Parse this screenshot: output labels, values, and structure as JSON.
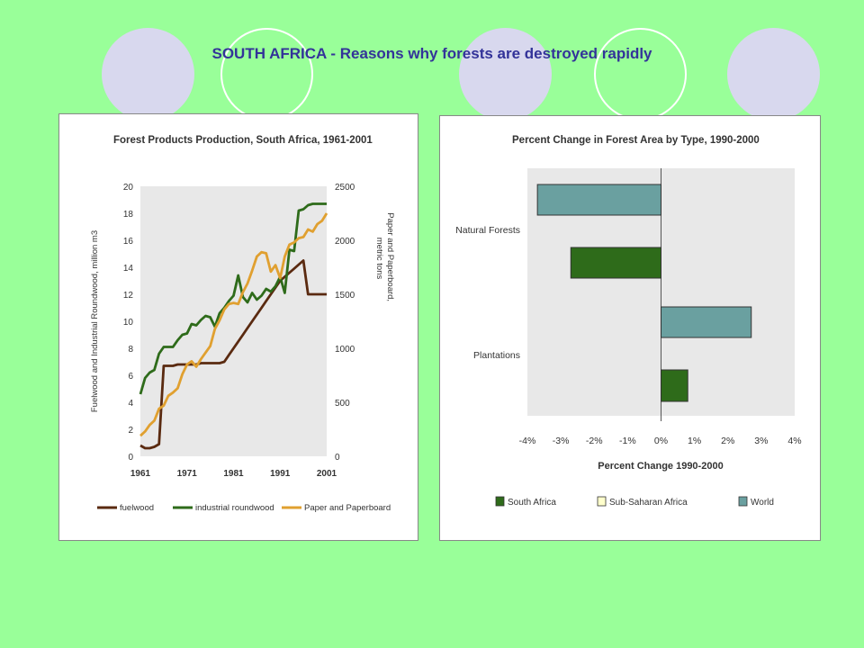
{
  "slide": {
    "title": "SOUTH AFRICA  -  Reasons why forests are destroyed rapidly"
  },
  "colors": {
    "background": "#99ff99",
    "circle_fill": "#d8d8ee",
    "circle_ring": "#ffffff",
    "title_text": "#333399",
    "fuelwood": "#5a2a10",
    "industrial_roundwood": "#2e6b1a",
    "paper": "#e0a030",
    "south_africa": "#2e6b1a",
    "sub_saharan_africa": "#ffffcc",
    "world": "#6aa0a0",
    "plot_bg": "#e8e8e8"
  },
  "chart_data": [
    {
      "type": "line",
      "title": "Forest Products Production, South Africa, 1961-2001",
      "ylabel": "Fuelwood and Industrial Roundwood, million m3",
      "y2label": "Paper and Paperboard, metric tons",
      "xlim": [
        1961,
        2001
      ],
      "ylim": [
        0,
        20
      ],
      "y2lim": [
        0,
        2500
      ],
      "xticks": [
        "1961",
        "1971",
        "1981",
        "1991",
        "2001"
      ],
      "yticks": [
        "0",
        "2",
        "4",
        "6",
        "8",
        "10",
        "12",
        "14",
        "16",
        "18",
        "20"
      ],
      "y2ticks": [
        "0",
        "500",
        "1000",
        "1500",
        "2000",
        "2500"
      ],
      "legend_position": "bottom",
      "series": [
        {
          "name": "fuelwood",
          "axis": "left",
          "x": [
            1961,
            1962,
            1963,
            1964,
            1965,
            1966,
            1967,
            1968,
            1969,
            1970,
            1971,
            1972,
            1973,
            1974,
            1975,
            1976,
            1977,
            1978,
            1979,
            1980,
            1981,
            1982,
            1983,
            1984,
            1985,
            1986,
            1987,
            1988,
            1989,
            1990,
            1991,
            1992,
            1993,
            1994,
            1995,
            1996,
            1997,
            1998,
            1999,
            2000,
            2001
          ],
          "values": [
            0.8,
            0.6,
            0.6,
            0.7,
            0.9,
            6.7,
            6.7,
            6.7,
            6.8,
            6.8,
            6.8,
            6.8,
            6.8,
            6.9,
            6.9,
            6.9,
            6.9,
            6.9,
            7.0,
            7.5,
            8.0,
            8.5,
            9.0,
            9.5,
            10.0,
            10.5,
            11.0,
            11.5,
            12.0,
            12.5,
            13.0,
            13.3,
            13.6,
            13.9,
            14.2,
            14.5,
            12.0,
            12.0,
            12.0,
            12.0,
            12.0
          ]
        },
        {
          "name": "industrial roundwood",
          "axis": "left",
          "x": [
            1961,
            1962,
            1963,
            1964,
            1965,
            1966,
            1967,
            1968,
            1969,
            1970,
            1971,
            1972,
            1973,
            1974,
            1975,
            1976,
            1977,
            1978,
            1979,
            1980,
            1981,
            1982,
            1983,
            1984,
            1985,
            1986,
            1987,
            1988,
            1989,
            1990,
            1991,
            1992,
            1993,
            1994,
            1995,
            1996,
            1997,
            1998,
            1999,
            2000,
            2001
          ],
          "values": [
            4.6,
            5.8,
            6.2,
            6.4,
            7.6,
            8.1,
            8.1,
            8.1,
            8.6,
            9.0,
            9.1,
            9.8,
            9.7,
            10.1,
            10.4,
            10.3,
            9.6,
            10.6,
            11.0,
            11.5,
            11.9,
            13.4,
            11.8,
            11.4,
            12.1,
            11.6,
            11.9,
            12.4,
            12.2,
            12.6,
            13.3,
            12.1,
            15.3,
            15.2,
            18.2,
            18.3,
            18.6,
            18.7,
            18.7,
            18.7,
            18.7
          ]
        },
        {
          "name": "Paper and Paperboard",
          "axis": "right",
          "x": [
            1961,
            1962,
            1963,
            1964,
            1965,
            1966,
            1967,
            1968,
            1969,
            1970,
            1971,
            1972,
            1973,
            1974,
            1975,
            1976,
            1977,
            1978,
            1979,
            1980,
            1981,
            1982,
            1983,
            1984,
            1985,
            1986,
            1987,
            1988,
            1989,
            1990,
            1991,
            1992,
            1993,
            1994,
            1995,
            1996,
            1997,
            1998,
            1999,
            2000,
            2001
          ],
          "values": [
            190,
            230,
            290,
            330,
            440,
            470,
            560,
            590,
            630,
            760,
            850,
            880,
            830,
            900,
            960,
            1020,
            1180,
            1260,
            1360,
            1410,
            1420,
            1410,
            1520,
            1600,
            1720,
            1850,
            1890,
            1880,
            1710,
            1770,
            1650,
            1850,
            1960,
            1980,
            2020,
            2030,
            2100,
            2080,
            2150,
            2180,
            2250
          ]
        }
      ]
    },
    {
      "type": "bar",
      "orientation": "horizontal",
      "title": "Percent Change in Forest Area by Type, 1990-2000",
      "xlabel": "Percent Change 1990-2000",
      "xlim": [
        -4,
        4
      ],
      "xticks": [
        "-4%",
        "-3%",
        "-2%",
        "-1%",
        "0%",
        "1%",
        "2%",
        "3%",
        "4%"
      ],
      "categories": [
        "Natural Forests",
        "Plantations"
      ],
      "legend": [
        "South Africa",
        "Sub-Saharan Africa",
        "World"
      ],
      "legend_position": "bottom",
      "series": [
        {
          "name": "World",
          "values": [
            -3.7,
            2.7
          ]
        },
        {
          "name": "South Africa",
          "values": [
            -2.7,
            0.8
          ]
        },
        {
          "name": "Sub-Saharan Africa",
          "values": [
            null,
            null
          ]
        }
      ]
    }
  ]
}
